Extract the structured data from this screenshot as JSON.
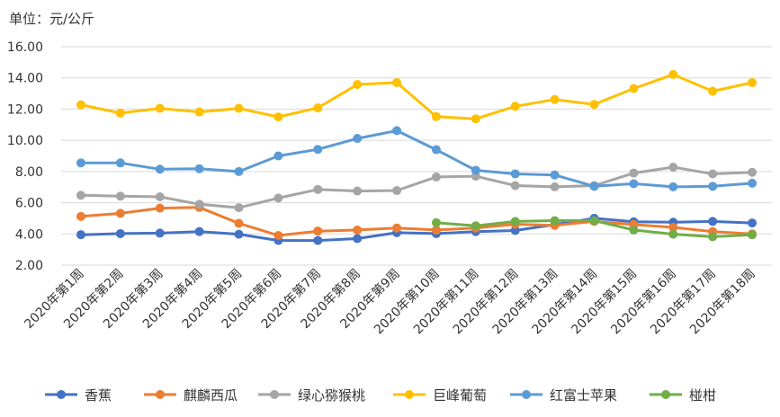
{
  "chart_data": {
    "type": "line",
    "unit_label": "单位：元/公斤",
    "ylim": [
      2,
      16
    ],
    "yticks": [
      "2.00",
      "4.00",
      "6.00",
      "8.00",
      "10.00",
      "12.00",
      "14.00",
      "16.00"
    ],
    "grid": true,
    "legend_position": "bottom",
    "categories": [
      "2020年第1周",
      "2020年第2周",
      "2020年第3周",
      "2020年第4周",
      "2020年第5周",
      "2020年第6周",
      "2020年第7周",
      "2020年第8周",
      "2020年第9周",
      "2020年第10周",
      "2020年第11周",
      "2020年第12周",
      "2020年第13周",
      "2020年第14周",
      "2020年第15周",
      "2020年第16周",
      "2020年第17周",
      "2020年第18周"
    ],
    "series": [
      {
        "name": "香蕉",
        "color": "#4472C4",
        "values": [
          3.95,
          4.02,
          4.05,
          4.15,
          3.98,
          3.58,
          3.58,
          3.7,
          4.08,
          4.02,
          4.15,
          4.22,
          4.6,
          5.0,
          4.78,
          4.75,
          4.8,
          4.7
        ]
      },
      {
        "name": "麒麟西瓜",
        "color": "#ED7D31",
        "values": [
          5.12,
          5.32,
          5.65,
          5.7,
          4.68,
          3.9,
          4.18,
          4.25,
          4.38,
          4.25,
          4.38,
          4.62,
          4.55,
          4.8,
          4.6,
          4.42,
          4.15,
          4.0
        ]
      },
      {
        "name": "绿心猕猴桃",
        "color": "#A5A5A5",
        "values": [
          6.48,
          6.42,
          6.38,
          5.9,
          5.68,
          6.3,
          6.85,
          6.75,
          6.78,
          7.65,
          7.7,
          7.1,
          7.02,
          7.1,
          7.9,
          8.28,
          7.85,
          7.95
        ]
      },
      {
        "name": "巨峰葡萄",
        "color": "#FFC000",
        "values": [
          12.28,
          11.75,
          12.05,
          11.82,
          12.05,
          11.5,
          12.08,
          13.58,
          13.7,
          11.52,
          11.38,
          12.18,
          12.62,
          12.3,
          13.32,
          14.22,
          13.15,
          13.7
        ]
      },
      {
        "name": "红富士苹果",
        "color": "#5B9BD5",
        "values": [
          8.55,
          8.55,
          8.15,
          8.18,
          8.0,
          9.0,
          9.42,
          10.12,
          10.62,
          9.4,
          8.08,
          7.85,
          7.78,
          7.05,
          7.22,
          7.02,
          7.05,
          7.25
        ]
      },
      {
        "name": "椪柑",
        "color": "#70AD47",
        "values": [
          null,
          null,
          null,
          null,
          null,
          null,
          null,
          null,
          null,
          4.72,
          4.52,
          4.8,
          4.85,
          4.85,
          4.25,
          3.98,
          3.82,
          3.95
        ]
      }
    ]
  }
}
